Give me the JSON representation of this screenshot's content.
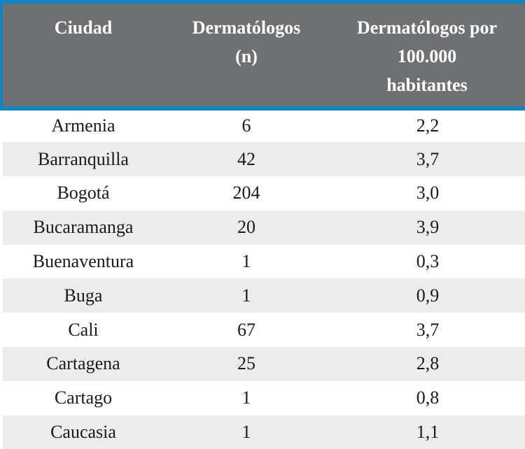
{
  "colors": {
    "accent_blue": "#0f85c8",
    "header_gray": "#6f7072",
    "stripe_gray": "#ececec",
    "header_text": "#ffffff",
    "body_text": "#1a1a1a"
  },
  "table": {
    "columns": [
      {
        "id": "ciudad",
        "label": "Ciudad",
        "lines": [
          "Ciudad"
        ]
      },
      {
        "id": "dermatologos_n",
        "label": "Dermatólogos (n)",
        "lines": [
          "Dermatólogos",
          "(n)"
        ]
      },
      {
        "id": "dermatologos_por_100000",
        "label": "Dermatólogos por 100.000 habitantes",
        "lines": [
          "Dermatólogos por",
          "100.000",
          "habitantes"
        ]
      }
    ],
    "rows": [
      [
        "Armenia",
        "6",
        "2,2"
      ],
      [
        "Barranquilla",
        "42",
        "3,7"
      ],
      [
        "Bogotá",
        "204",
        "3,0"
      ],
      [
        "Bucaramanga",
        "20",
        "3,9"
      ],
      [
        "Buenaventura",
        "1",
        "0,3"
      ],
      [
        "Buga",
        "1",
        "0,9"
      ],
      [
        "Cali",
        "67",
        "3,7"
      ],
      [
        "Cartagena",
        "25",
        "2,8"
      ],
      [
        "Cartago",
        "1",
        "0,8"
      ],
      [
        "Caucasia",
        "1",
        "1,1"
      ]
    ]
  },
  "chart_data": {
    "type": "table",
    "columns": [
      "Ciudad",
      "Dermatólogos (n)",
      "Dermatólogos por 100.000 habitantes"
    ],
    "rows": [
      {
        "ciudad": "Armenia",
        "dermatologos_n": 6,
        "dermatologos_por_100000_hab": 2.2
      },
      {
        "ciudad": "Barranquilla",
        "dermatologos_n": 42,
        "dermatologos_por_100000_hab": 3.7
      },
      {
        "ciudad": "Bogotá",
        "dermatologos_n": 204,
        "dermatologos_por_100000_hab": 3.0
      },
      {
        "ciudad": "Bucaramanga",
        "dermatologos_n": 20,
        "dermatologos_por_100000_hab": 3.9
      },
      {
        "ciudad": "Buenaventura",
        "dermatologos_n": 1,
        "dermatologos_por_100000_hab": 0.3
      },
      {
        "ciudad": "Buga",
        "dermatologos_n": 1,
        "dermatologos_por_100000_hab": 0.9
      },
      {
        "ciudad": "Cali",
        "dermatologos_n": 67,
        "dermatologos_por_100000_hab": 3.7
      },
      {
        "ciudad": "Cartagena",
        "dermatologos_n": 25,
        "dermatologos_por_100000_hab": 2.8
      },
      {
        "ciudad": "Cartago",
        "dermatologos_n": 1,
        "dermatologos_por_100000_hab": 0.8
      },
      {
        "ciudad": "Caucasia",
        "dermatologos_n": 1,
        "dermatologos_por_100000_hab": 1.1
      }
    ],
    "decimal_separator": ","
  }
}
